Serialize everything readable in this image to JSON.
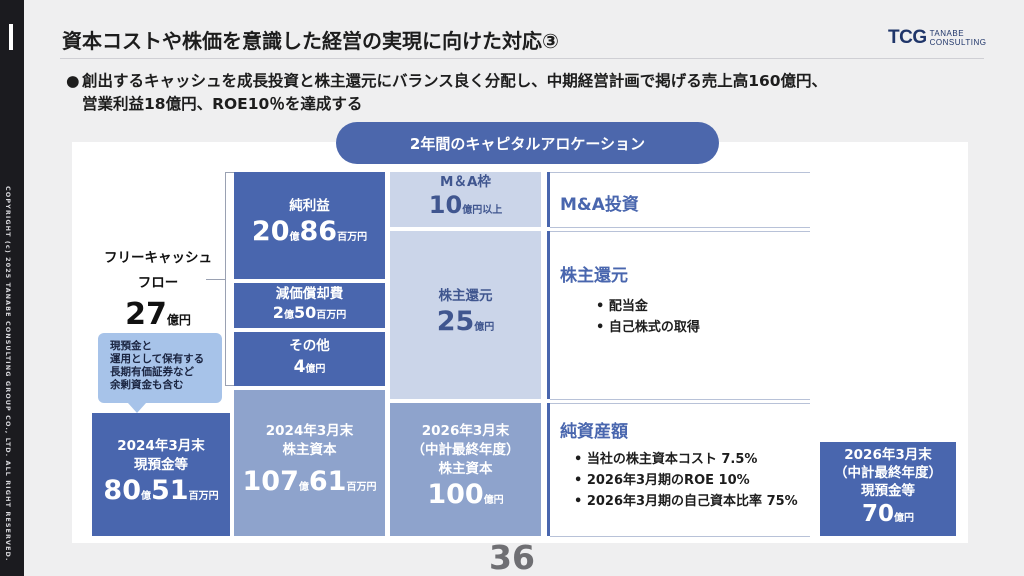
{
  "header": {
    "title": "資本コストや株価を意識した経営の実現に向けた対応③",
    "logo": {
      "mark": "TCG",
      "line1": "TANABE",
      "line2": "CONSULTING"
    }
  },
  "sidebar": {
    "copyright": "COPYRIGHT (c) 2025 TANABE CONSULTING GROUP CO., LTD. ALL RIGHT RESERVED."
  },
  "bullet": {
    "dot": "●",
    "line1": "創出するキャッシュを成長投資と株主還元にバランス良く分配し、中期経営計画で掲げる売上高160億円、",
    "line2": "営業利益18億円、ROE10％を達成する"
  },
  "pill": "2年間のキャピタルアロケーション",
  "fcf": {
    "label1": "フリーキャッシュ",
    "label2": "フロー",
    "value": "27",
    "unit": "億円"
  },
  "callout": {
    "lines": [
      "現預金と",
      "運用として保有する",
      "長期有価証券など",
      "余剰資金も含む"
    ]
  },
  "cash_2024": {
    "line1": "2024年3月末",
    "line2": "現預金等",
    "v1": "80",
    "u1": "億",
    "v2": "51",
    "u2": "百万円"
  },
  "net_income": {
    "label": "純利益",
    "v1": "20",
    "u1": "億",
    "v2": "86",
    "u2": "百万円"
  },
  "depreciation": {
    "label": "減価償却費",
    "v1": "2",
    "u1": "億",
    "v2": "50",
    "u2": "百万円"
  },
  "other": {
    "label": "その他",
    "v1": "4",
    "u1": "億円"
  },
  "equity_2024": {
    "line1": "2024年3月末",
    "line2": "株主資本",
    "v1": "107",
    "u1": "億",
    "v2": "61",
    "u2": "百万円"
  },
  "ma_frame": {
    "label": "M＆A枠",
    "value": "10",
    "unit": "億円以上"
  },
  "shareholder_box": {
    "label": "株主還元",
    "value": "25",
    "unit": "億円"
  },
  "equity_2026": {
    "line1": "2026年3月末",
    "line2": "（中計最終年度）",
    "line3": "株主資本",
    "value": "100",
    "unit": "億円"
  },
  "sections": {
    "ma": {
      "title": "M&A投資"
    },
    "returns": {
      "title": "株主還元",
      "items": [
        "• 配当金",
        "• 自己株式の取得"
      ]
    },
    "net_assets": {
      "title": "純資産額",
      "items": [
        "• 当社の株主資本コスト 7.5%",
        "• 2026年3月期のROE 10%",
        "• 2026年3月期の自己資本比率 75%"
      ]
    }
  },
  "cash_2026": {
    "line1": "2026年3月末",
    "line2": "（中計最終年度）",
    "line3": "現預金等",
    "value": "70",
    "unit": "億円"
  },
  "page_number": "36"
}
